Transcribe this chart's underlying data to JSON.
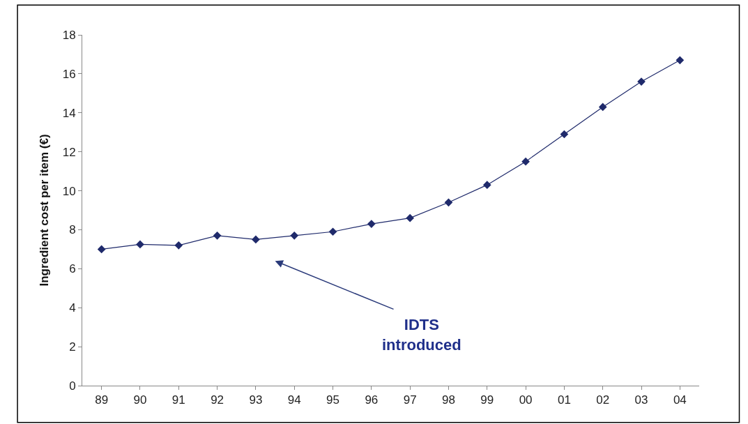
{
  "chart_data": {
    "type": "line",
    "ylabel": "Ingredient cost per item (€)",
    "categories": [
      "89",
      "90",
      "91",
      "92",
      "93",
      "94",
      "95",
      "96",
      "97",
      "98",
      "99",
      "00",
      "01",
      "02",
      "03",
      "04"
    ],
    "series": [
      {
        "color": "#1f2a6b",
        "values": [
          7.0,
          7.25,
          7.2,
          7.7,
          7.5,
          7.7,
          7.9,
          8.3,
          8.6,
          9.4,
          10.3,
          11.5,
          12.9,
          14.3,
          15.6,
          16.7
        ]
      }
    ],
    "ylim": [
      0,
      18
    ],
    "yticks": [
      0,
      2,
      4,
      6,
      8,
      10,
      12,
      14,
      16,
      18
    ],
    "annotations": [
      "IDTS\nintroduced"
    ],
    "marker": "diamond",
    "line_style": "solid",
    "legend": false
  }
}
